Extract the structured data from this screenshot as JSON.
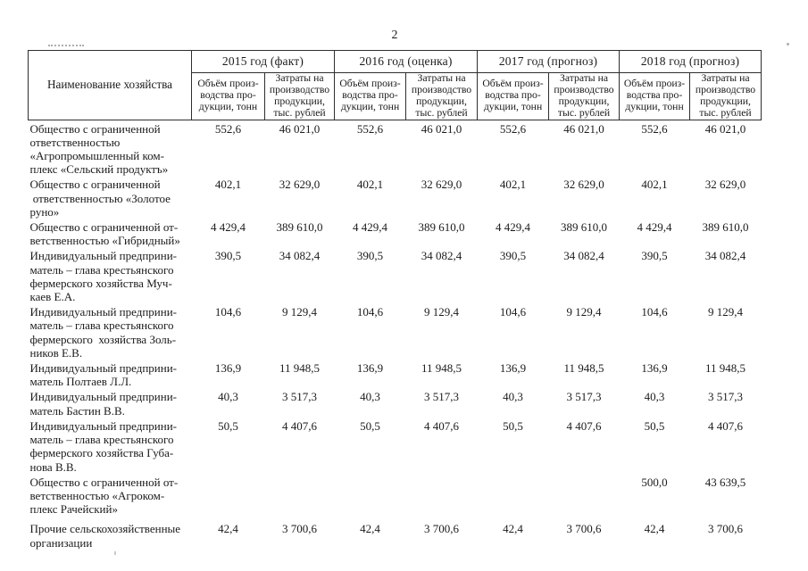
{
  "page": {
    "number": "2"
  },
  "table": {
    "name_header": "Наименование хозяйства",
    "year_headers": [
      "2015 год (факт)",
      "2016 год (оценка)",
      "2017 год (прогноз)",
      "2018 год (прогноз)"
    ],
    "sub_headers": {
      "volume": "Объём произ-\nводства про-\nдукции, тонн",
      "cost": "Затраты на\nпроизводство\nпродукции,\nтыс. рублей"
    },
    "rows": [
      {
        "name": "Общество с ограниченной\nответственностью\n«Агропромышленный ком-\nплекс «Сельский продуктъ»",
        "values": [
          "552,6",
          "46 021,0",
          "552,6",
          "46 021,0",
          "552,6",
          "46 021,0",
          "552,6",
          "46 021,0"
        ]
      },
      {
        "name": "Общество с ограниченной\n ответственностью «Золотое\nруно»",
        "values": [
          "402,1",
          "32 629,0",
          "402,1",
          "32 629,0",
          "402,1",
          "32 629,0",
          "402,1",
          "32 629,0"
        ]
      },
      {
        "name": "Общество с ограниченной от-\nветственностью «Гибридный»",
        "values": [
          "4 429,4",
          "389 610,0",
          "4 429,4",
          "389 610,0",
          "4 429,4",
          "389 610,0",
          "4 429,4",
          "389 610,0"
        ]
      },
      {
        "name": "Индивидуальный предприни-\nматель – глава крестьянского\nфермерского хозяйства Муч-\nкаев Е.А.",
        "values": [
          "390,5",
          "34 082,4",
          "390,5",
          "34 082,4",
          "390,5",
          "34 082,4",
          "390,5",
          "34 082,4"
        ]
      },
      {
        "name": "Индивидуальный предприни-\nматель – глава крестьянского\nфермерского  хозяйства Золь-\nников Е.В.",
        "values": [
          "104,6",
          "9 129,4",
          "104,6",
          "9 129,4",
          "104,6",
          "9 129,4",
          "104,6",
          "9 129,4"
        ]
      },
      {
        "name": "Индивидуальный предприни-\nматель Полтаев Л.Л.",
        "values": [
          "136,9",
          "11 948,5",
          "136,9",
          "11 948,5",
          "136,9",
          "11 948,5",
          "136,9",
          "11 948,5"
        ]
      },
      {
        "name": "Индивидуальный предприни-\nматель Бастин В.В.",
        "values": [
          "40,3",
          "3 517,3",
          "40,3",
          "3 517,3",
          "40,3",
          "3 517,3",
          "40,3",
          "3 517,3"
        ]
      },
      {
        "name": "Индивидуальный предприни-\nматель – глава крестьянского\nфермерского хозяйства Губа-\nнова В.В.",
        "values": [
          "50,5",
          "4 407,6",
          "50,5",
          "4 407,6",
          "50,5",
          "4 407,6",
          "50,5",
          "4 407,6"
        ]
      },
      {
        "name": "Общество с ограниченной от-\nветственностью «Агроком-\nплекс Рачейский»",
        "values": [
          "",
          "",
          "",
          "",
          "",
          "",
          "500,0",
          "43 639,5"
        ]
      },
      {
        "name": "Прочие сельскохозяйственные\nорганизации",
        "values": [
          "42,4",
          "3 700,6",
          "42,4",
          "3 700,6",
          "42,4",
          "3 700,6",
          "42,4",
          "3 700,6"
        ]
      }
    ]
  }
}
